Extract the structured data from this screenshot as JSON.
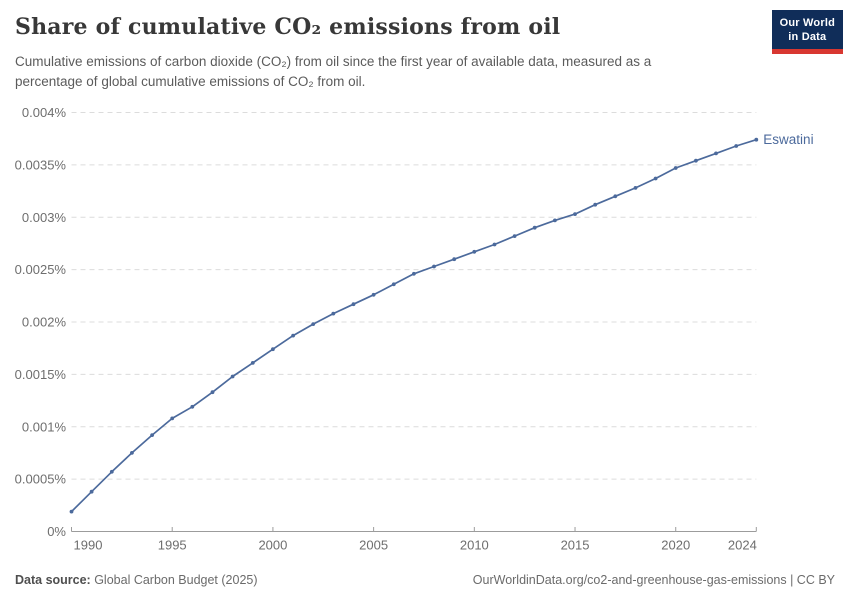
{
  "header": {
    "logo": {
      "line1": "Our World",
      "line2": "in Data"
    }
  },
  "footer": {
    "source_label": "Data source:",
    "source_text": " Global Carbon Budget (2025)",
    "right_text": "OurWorldinData.org/co2-and-greenhouse-gas-emissions | CC BY"
  },
  "colors": {
    "series_blue": "#4C6A9C",
    "logo_navy": "#102D59",
    "logo_red": "#D83731",
    "gridline": "#dcdcdc",
    "axis": "#9c9c9c",
    "tick_text": "#6e6e6e"
  },
  "chart_data": {
    "type": "line",
    "title": "Share of cumulative CO₂ emissions from oil",
    "subtitle": "Cumulative emissions of carbon dioxide (CO₂) from oil since the first year of available data, measured as a percentage of global cumulative emissions of CO₂ from oil.",
    "entity": "Eswatini",
    "unit": "%",
    "grid": "horizontal-dashed",
    "legend": "series-end-label",
    "xlim": [
      1990,
      2024
    ],
    "ylim": [
      0,
      0.004
    ],
    "x_ticks": [
      1990,
      1995,
      2000,
      2005,
      2010,
      2015,
      2020,
      2024
    ],
    "y_ticks": [
      0,
      0.0005,
      0.001,
      0.0015,
      0.002,
      0.0025,
      0.003,
      0.0035,
      0.004
    ],
    "y_tick_labels": [
      "0%",
      "0.0005%",
      "0.001%",
      "0.0015%",
      "0.002%",
      "0.0025%",
      "0.003%",
      "0.0035%",
      "0.004%"
    ],
    "x": [
      1990,
      1991,
      1992,
      1993,
      1994,
      1995,
      1996,
      1997,
      1998,
      1999,
      2000,
      2001,
      2002,
      2003,
      2004,
      2005,
      2006,
      2007,
      2008,
      2009,
      2010,
      2011,
      2012,
      2013,
      2014,
      2015,
      2016,
      2017,
      2018,
      2019,
      2020,
      2021,
      2022,
      2023,
      2024
    ],
    "series": [
      {
        "name": "Eswatini",
        "color": "#4C6A9C",
        "values": [
          0.00019,
          0.00038,
          0.00057,
          0.00075,
          0.00092,
          0.00108,
          0.00119,
          0.00133,
          0.00148,
          0.00161,
          0.00174,
          0.00187,
          0.00198,
          0.00208,
          0.00217,
          0.00226,
          0.00236,
          0.00246,
          0.00253,
          0.0026,
          0.00267,
          0.00274,
          0.00282,
          0.0029,
          0.00297,
          0.00303,
          0.00312,
          0.0032,
          0.00328,
          0.00337,
          0.00347,
          0.00354,
          0.00361,
          0.00368,
          0.00374
        ]
      }
    ]
  }
}
